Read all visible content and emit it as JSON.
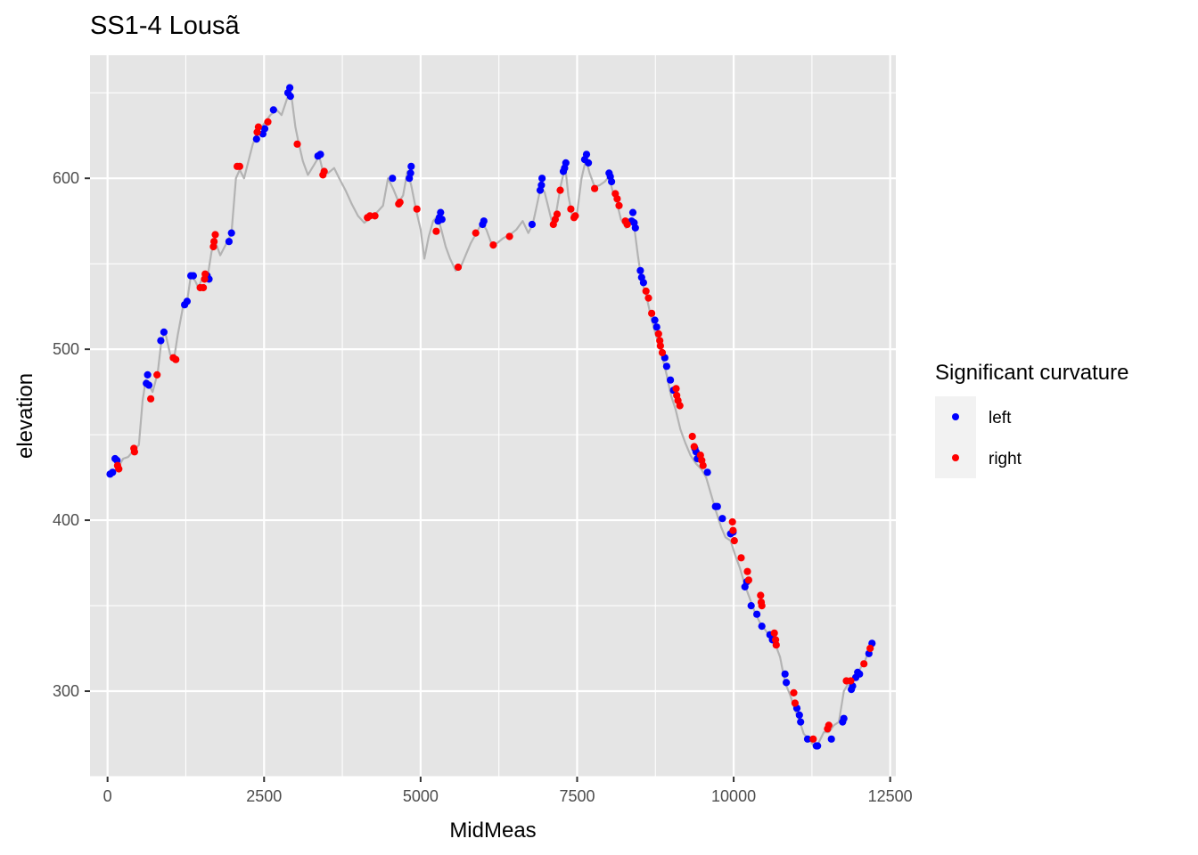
{
  "chart_data": {
    "type": "scatter",
    "title": "SS1-4 Lousã",
    "xlabel": "MidMeas",
    "ylabel": "elevation",
    "xlim": [
      -280,
      12590
    ],
    "ylim": [
      250,
      672
    ],
    "x_ticks": [
      0,
      2500,
      5000,
      7500,
      10000,
      12500
    ],
    "x_tick_labels": [
      "0",
      "2500",
      "5000",
      "7500",
      "10000",
      "12500"
    ],
    "y_ticks": [
      300,
      400,
      500,
      600
    ],
    "y_tick_labels": [
      "300",
      "400",
      "500",
      "600"
    ],
    "grid": true,
    "legend": {
      "title": "Significant curvature",
      "placement": "right",
      "entries": [
        {
          "label": "left",
          "color": "#0000ff"
        },
        {
          "label": "right",
          "color": "#ff0000"
        }
      ]
    },
    "colors": {
      "left": "#0000ff",
      "right": "#ff0000",
      "profile_line": "#b3b3b3",
      "panel_background": "#e5e5e5",
      "grid": "#ffffff"
    },
    "profile_line": [
      [
        30,
        427
      ],
      [
        150,
        430
      ],
      [
        250,
        436
      ],
      [
        330,
        437
      ],
      [
        420,
        441
      ],
      [
        500,
        444
      ],
      [
        560,
        470
      ],
      [
        610,
        482
      ],
      [
        650,
        480
      ],
      [
        720,
        475
      ],
      [
        800,
        486
      ],
      [
        860,
        505
      ],
      [
        920,
        510
      ],
      [
        1000,
        497
      ],
      [
        1060,
        494
      ],
      [
        1120,
        508
      ],
      [
        1200,
        524
      ],
      [
        1270,
        528
      ],
      [
        1330,
        543
      ],
      [
        1400,
        540
      ],
      [
        1450,
        536
      ],
      [
        1530,
        543
      ],
      [
        1600,
        543
      ],
      [
        1660,
        557
      ],
      [
        1720,
        563
      ],
      [
        1800,
        555
      ],
      [
        1900,
        562
      ],
      [
        1980,
        568
      ],
      [
        2050,
        600
      ],
      [
        2110,
        605
      ],
      [
        2180,
        600
      ],
      [
        2250,
        610
      ],
      [
        2320,
        620
      ],
      [
        2400,
        627
      ],
      [
        2500,
        632
      ],
      [
        2600,
        637
      ],
      [
        2700,
        640
      ],
      [
        2780,
        637
      ],
      [
        2870,
        647
      ],
      [
        2930,
        650
      ],
      [
        3000,
        630
      ],
      [
        3050,
        621
      ],
      [
        3120,
        610
      ],
      [
        3200,
        602
      ],
      [
        3300,
        608
      ],
      [
        3380,
        613
      ],
      [
        3440,
        604
      ],
      [
        3520,
        603
      ],
      [
        3620,
        606
      ],
      [
        3700,
        600
      ],
      [
        3800,
        593
      ],
      [
        3900,
        585
      ],
      [
        4000,
        578
      ],
      [
        4100,
        574
      ],
      [
        4200,
        577
      ],
      [
        4300,
        580
      ],
      [
        4400,
        584
      ],
      [
        4480,
        600
      ],
      [
        4560,
        594
      ],
      [
        4650,
        586
      ],
      [
        4720,
        590
      ],
      [
        4790,
        604
      ],
      [
        4850,
        596
      ],
      [
        4930,
        581
      ],
      [
        5000,
        570
      ],
      [
        5060,
        553
      ],
      [
        5130,
        566
      ],
      [
        5200,
        575
      ],
      [
        5270,
        578
      ],
      [
        5330,
        570
      ],
      [
        5400,
        560
      ],
      [
        5470,
        553
      ],
      [
        5560,
        546
      ],
      [
        5640,
        548
      ],
      [
        5720,
        555
      ],
      [
        5800,
        562
      ],
      [
        5890,
        568
      ],
      [
        5980,
        574
      ],
      [
        6050,
        570
      ],
      [
        6130,
        562
      ],
      [
        6220,
        562
      ],
      [
        6320,
        565
      ],
      [
        6430,
        567
      ],
      [
        6530,
        570
      ],
      [
        6630,
        575
      ],
      [
        6720,
        568
      ],
      [
        6790,
        573
      ],
      [
        6850,
        583
      ],
      [
        6920,
        595
      ],
      [
        6980,
        592
      ],
      [
        7040,
        583
      ],
      [
        7100,
        574
      ],
      [
        7170,
        581
      ],
      [
        7240,
        596
      ],
      [
        7310,
        607
      ],
      [
        7360,
        590
      ],
      [
        7420,
        578
      ],
      [
        7500,
        580
      ],
      [
        7570,
        600
      ],
      [
        7640,
        611
      ],
      [
        7700,
        603
      ],
      [
        7780,
        595
      ],
      [
        7860,
        596
      ],
      [
        7940,
        598
      ],
      [
        8010,
        601
      ],
      [
        8070,
        592
      ],
      [
        8140,
        585
      ],
      [
        8200,
        576
      ],
      [
        8280,
        571
      ],
      [
        8350,
        575
      ],
      [
        8410,
        572
      ],
      [
        8470,
        555
      ],
      [
        8530,
        540
      ],
      [
        8600,
        532
      ],
      [
        8680,
        519
      ],
      [
        8760,
        508
      ],
      [
        8850,
        497
      ],
      [
        8930,
        485
      ],
      [
        9000,
        473
      ],
      [
        9070,
        465
      ],
      [
        9150,
        453
      ],
      [
        9230,
        445
      ],
      [
        9310,
        438
      ],
      [
        9400,
        433
      ],
      [
        9480,
        430
      ],
      [
        9560,
        425
      ],
      [
        9640,
        415
      ],
      [
        9720,
        405
      ],
      [
        9800,
        396
      ],
      [
        9870,
        390
      ],
      [
        9950,
        388
      ],
      [
        10020,
        380
      ],
      [
        10100,
        372
      ],
      [
        10180,
        362
      ],
      [
        10260,
        354
      ],
      [
        10340,
        346
      ],
      [
        10420,
        340
      ],
      [
        10500,
        336
      ],
      [
        10580,
        332
      ],
      [
        10660,
        328
      ],
      [
        10740,
        320
      ],
      [
        10820,
        305
      ],
      [
        10900,
        298
      ],
      [
        10980,
        289
      ],
      [
        11050,
        283
      ],
      [
        11120,
        275
      ],
      [
        11200,
        272
      ],
      [
        11280,
        268
      ],
      [
        11360,
        270
      ],
      [
        11440,
        276
      ],
      [
        11520,
        276
      ],
      [
        11600,
        280
      ],
      [
        11680,
        282
      ],
      [
        11760,
        300
      ],
      [
        11840,
        305
      ],
      [
        11920,
        308
      ],
      [
        12000,
        312
      ],
      [
        12100,
        318
      ],
      [
        12200,
        328
      ]
    ],
    "series": [
      {
        "name": "left",
        "points": [
          [
            40,
            427
          ],
          [
            80,
            428
          ],
          [
            120,
            436
          ],
          [
            150,
            435
          ],
          [
            620,
            480
          ],
          [
            640,
            485
          ],
          [
            660,
            479
          ],
          [
            850,
            505
          ],
          [
            900,
            510
          ],
          [
            1230,
            526
          ],
          [
            1270,
            528
          ],
          [
            1330,
            543
          ],
          [
            1370,
            543
          ],
          [
            1590,
            543
          ],
          [
            1620,
            541
          ],
          [
            1940,
            563
          ],
          [
            1980,
            568
          ],
          [
            2380,
            623
          ],
          [
            2480,
            626
          ],
          [
            2510,
            629
          ],
          [
            2650,
            640
          ],
          [
            2880,
            650
          ],
          [
            2910,
            653
          ],
          [
            2920,
            648
          ],
          [
            3360,
            613
          ],
          [
            3400,
            614
          ],
          [
            4550,
            600
          ],
          [
            4820,
            600
          ],
          [
            4840,
            603
          ],
          [
            4850,
            607
          ],
          [
            5280,
            575
          ],
          [
            5300,
            577
          ],
          [
            5320,
            580
          ],
          [
            5340,
            576
          ],
          [
            5990,
            573
          ],
          [
            6010,
            575
          ],
          [
            6780,
            573
          ],
          [
            6910,
            593
          ],
          [
            6930,
            596
          ],
          [
            6940,
            600
          ],
          [
            7280,
            604
          ],
          [
            7300,
            606
          ],
          [
            7320,
            609
          ],
          [
            7620,
            611
          ],
          [
            7650,
            614
          ],
          [
            7680,
            609
          ],
          [
            8010,
            603
          ],
          [
            8030,
            601
          ],
          [
            8050,
            598
          ],
          [
            8370,
            575
          ],
          [
            8390,
            580
          ],
          [
            8410,
            574
          ],
          [
            8430,
            571
          ],
          [
            8510,
            546
          ],
          [
            8530,
            542
          ],
          [
            8560,
            539
          ],
          [
            8740,
            517
          ],
          [
            8770,
            513
          ],
          [
            8900,
            495
          ],
          [
            8930,
            490
          ],
          [
            8990,
            482
          ],
          [
            9040,
            476
          ],
          [
            9380,
            442
          ],
          [
            9400,
            440
          ],
          [
            9420,
            436
          ],
          [
            9580,
            428
          ],
          [
            9710,
            408
          ],
          [
            9740,
            408
          ],
          [
            9820,
            401
          ],
          [
            9950,
            392
          ],
          [
            9990,
            393
          ],
          [
            10180,
            361
          ],
          [
            10210,
            364
          ],
          [
            10280,
            350
          ],
          [
            10370,
            345
          ],
          [
            10450,
            338
          ],
          [
            10580,
            333
          ],
          [
            10620,
            330
          ],
          [
            10820,
            310
          ],
          [
            10840,
            305
          ],
          [
            11010,
            290
          ],
          [
            11050,
            286
          ],
          [
            11070,
            282
          ],
          [
            11180,
            272
          ],
          [
            11320,
            268
          ],
          [
            11340,
            268
          ],
          [
            11560,
            272
          ],
          [
            11740,
            282
          ],
          [
            11760,
            284
          ],
          [
            11880,
            301
          ],
          [
            11900,
            303
          ],
          [
            11950,
            308
          ],
          [
            11980,
            311
          ],
          [
            12010,
            310
          ],
          [
            12160,
            322
          ],
          [
            12210,
            328
          ]
        ]
      },
      {
        "name": "right",
        "points": [
          [
            160,
            432
          ],
          [
            180,
            430
          ],
          [
            420,
            442
          ],
          [
            430,
            440
          ],
          [
            690,
            471
          ],
          [
            790,
            485
          ],
          [
            1050,
            495
          ],
          [
            1090,
            494
          ],
          [
            1480,
            536
          ],
          [
            1530,
            536
          ],
          [
            1550,
            541
          ],
          [
            1560,
            544
          ],
          [
            1690,
            560
          ],
          [
            1700,
            563
          ],
          [
            1720,
            567
          ],
          [
            2070,
            607
          ],
          [
            2110,
            607
          ],
          [
            2390,
            627
          ],
          [
            2410,
            630
          ],
          [
            2560,
            633
          ],
          [
            3030,
            620
          ],
          [
            3440,
            602
          ],
          [
            3460,
            604
          ],
          [
            4150,
            577
          ],
          [
            4190,
            578
          ],
          [
            4270,
            578
          ],
          [
            4650,
            585
          ],
          [
            4670,
            586
          ],
          [
            4940,
            582
          ],
          [
            5250,
            569
          ],
          [
            5600,
            548
          ],
          [
            5880,
            568
          ],
          [
            6160,
            561
          ],
          [
            6420,
            566
          ],
          [
            7120,
            573
          ],
          [
            7150,
            576
          ],
          [
            7180,
            579
          ],
          [
            7230,
            593
          ],
          [
            7400,
            582
          ],
          [
            7450,
            577
          ],
          [
            7470,
            578
          ],
          [
            7780,
            594
          ],
          [
            8110,
            591
          ],
          [
            8140,
            588
          ],
          [
            8170,
            584
          ],
          [
            8270,
            575
          ],
          [
            8300,
            573
          ],
          [
            8600,
            534
          ],
          [
            8640,
            530
          ],
          [
            8690,
            521
          ],
          [
            8800,
            509
          ],
          [
            8820,
            505
          ],
          [
            8830,
            502
          ],
          [
            8860,
            498
          ],
          [
            9080,
            477
          ],
          [
            9090,
            473
          ],
          [
            9110,
            470
          ],
          [
            9140,
            467
          ],
          [
            9340,
            449
          ],
          [
            9370,
            443
          ],
          [
            9470,
            438
          ],
          [
            9490,
            435
          ],
          [
            9510,
            432
          ],
          [
            9980,
            399
          ],
          [
            9990,
            394
          ],
          [
            10010,
            388
          ],
          [
            10120,
            378
          ],
          [
            10220,
            370
          ],
          [
            10240,
            365
          ],
          [
            10430,
            356
          ],
          [
            10440,
            352
          ],
          [
            10450,
            350
          ],
          [
            10650,
            334
          ],
          [
            10670,
            330
          ],
          [
            10680,
            327
          ],
          [
            10960,
            299
          ],
          [
            10980,
            293
          ],
          [
            11270,
            272
          ],
          [
            11500,
            278
          ],
          [
            11520,
            280
          ],
          [
            11800,
            306
          ],
          [
            11870,
            306
          ],
          [
            12080,
            316
          ],
          [
            12180,
            325
          ]
        ]
      }
    ]
  }
}
